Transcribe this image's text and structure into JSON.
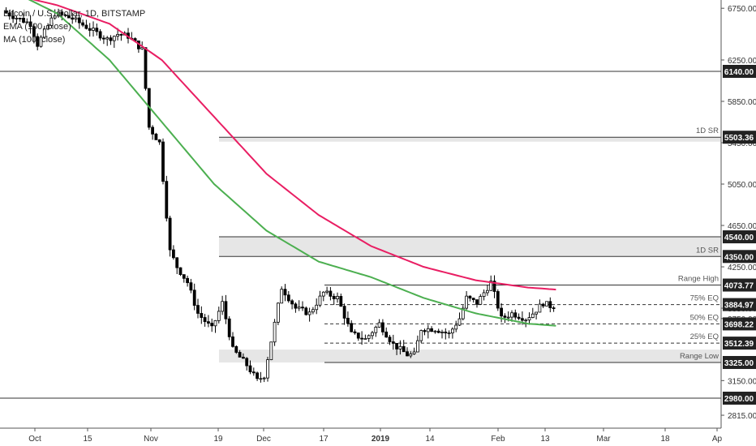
{
  "legend": {
    "symbol": "Bitcoin / U.S. Dollar, 1D, BITSTAMP",
    "ema": "EMA (100, close)",
    "ma": "MA (100, close)"
  },
  "chart_data": {
    "type": "candlestick",
    "ylim": [
      2690,
      6830
    ],
    "x_ticks": [
      "Oct",
      "15",
      "Nov",
      "19",
      "Dec",
      "17",
      "2019",
      "14",
      "Feb",
      "13",
      "Mar",
      "18",
      "Ap"
    ],
    "y_ticks": [
      "6750.00",
      "6250.00",
      "5850.00",
      "5450.00",
      "5050.00",
      "4650.00",
      "4250.00",
      "3850.00",
      "3750.00",
      "3150.00",
      "2815.00"
    ],
    "price_labels": [
      "6140.00",
      "5503.36",
      "4540.00",
      "4350.00",
      "4073.77",
      "3884.97",
      "3698.22",
      "3512.39",
      "3325.00",
      "2980.00"
    ],
    "levels": [
      {
        "value": 6140.0,
        "style": "solid",
        "label": ""
      },
      {
        "value": 5503.36,
        "style": "solid",
        "label": "1D SR"
      },
      {
        "value": 4540.0,
        "style": "solid",
        "label": ""
      },
      {
        "value": 4350.0,
        "style": "solid",
        "label": "1D SR"
      },
      {
        "value": 4073.77,
        "style": "solid",
        "label": "Range High"
      },
      {
        "value": 3884.97,
        "style": "dashed",
        "label": "75% EQ"
      },
      {
        "value": 3698.22,
        "style": "dashed",
        "label": "50% EQ"
      },
      {
        "value": 3512.39,
        "style": "dashed",
        "label": "25% EQ"
      },
      {
        "value": 3325.0,
        "style": "solid",
        "label": "Range Low"
      },
      {
        "value": 2980.0,
        "style": "solid",
        "label": ""
      }
    ],
    "zones": [
      {
        "from": 5460,
        "to": 5503.36
      },
      {
        "from": 4350,
        "to": 4540
      },
      {
        "from": 3325,
        "to": 3450
      }
    ],
    "ema_series": {
      "name": "EMA (100, close)",
      "color": "#4caf50",
      "x": [
        0,
        15,
        30,
        45,
        60,
        75,
        90,
        105,
        120,
        135,
        150,
        158
      ],
      "y": [
        6950,
        6700,
        6250,
        5650,
        5050,
        4600,
        4300,
        4150,
        3950,
        3800,
        3700,
        3680
      ]
    },
    "ma_series": {
      "name": "MA (100, close)",
      "color": "#e91e63",
      "x": [
        0,
        15,
        30,
        45,
        60,
        75,
        90,
        105,
        120,
        135,
        150,
        158
      ],
      "y": [
        6900,
        6780,
        6600,
        6250,
        5700,
        5150,
        4750,
        4450,
        4250,
        4120,
        4050,
        4030
      ]
    },
    "ohlc_anchors": {
      "x": [
        0,
        8,
        10,
        15,
        20,
        25,
        30,
        33,
        36,
        40,
        42,
        45,
        48,
        50,
        53,
        56,
        60,
        63,
        66,
        70,
        73,
        75,
        78,
        80,
        84,
        88,
        92,
        96,
        100,
        104,
        108,
        112,
        116,
        118,
        120,
        124,
        128,
        131,
        133,
        136,
        140,
        143,
        146,
        150,
        152,
        155,
        157
      ],
      "y": [
        6720,
        6600,
        6400,
        6700,
        6650,
        6550,
        6450,
        6500,
        6480,
        6350,
        5600,
        5450,
        4400,
        4250,
        4100,
        3800,
        3650,
        3900,
        3450,
        3300,
        3150,
        3200,
        3700,
        4050,
        3850,
        3800,
        4000,
        3950,
        3600,
        3550,
        3700,
        3500,
        3400,
        3400,
        3650,
        3650,
        3600,
        3750,
        3950,
        3900,
        4100,
        3750,
        3800,
        3750,
        3800,
        3900,
        3870
      ]
    },
    "bars": 158,
    "bull_color": "#ffffff",
    "bear_color": "#000000",
    "grid": false
  }
}
